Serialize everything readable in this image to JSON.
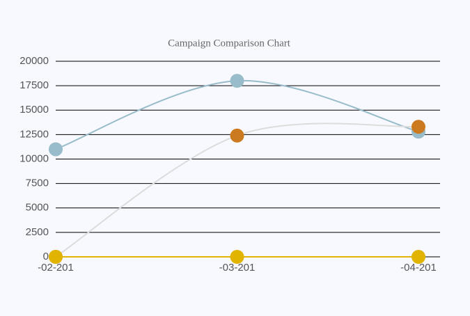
{
  "chart_data": {
    "type": "line",
    "title": "Campaign Comparison Chart",
    "categories": [
      "-02-201",
      "-03-201",
      "-04-201"
    ],
    "series": [
      {
        "color": "#98bcc9",
        "line_color": "#98bcc9",
        "values": [
          11000,
          18000,
          12800
        ]
      },
      {
        "color": "#cc7a1f",
        "line_color": "#dcdcdc",
        "values": [
          0,
          12400,
          13300
        ]
      },
      {
        "color": "#e0b400",
        "line_color": "#e0b400",
        "values": [
          0,
          0,
          0
        ]
      }
    ],
    "ylim": [
      0,
      20000
    ],
    "yticks": [
      0,
      2500,
      5000,
      7500,
      10000,
      12500,
      15000,
      17500,
      20000
    ],
    "grid": true,
    "smooth": true
  }
}
